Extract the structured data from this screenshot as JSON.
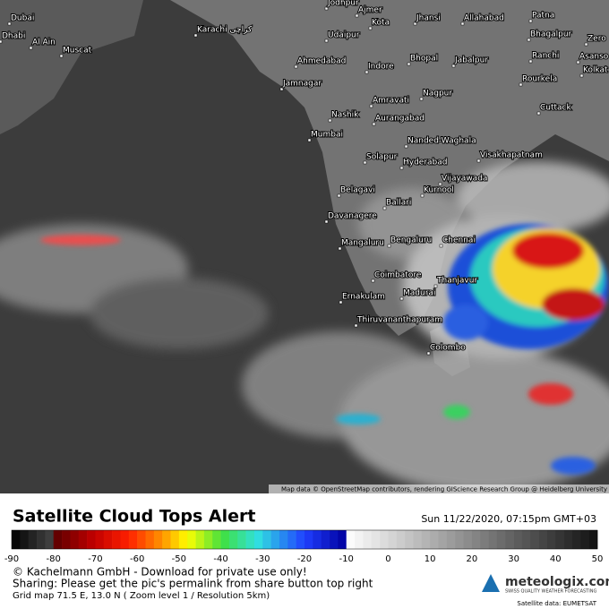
{
  "map": {
    "cities": [
      "Jodhpur",
      "Dubai",
      "Dhabi",
      "Al Ain",
      "Muscat",
      "Karachi كراچی",
      "Ajmer",
      "Kota",
      "Jhansi",
      "Allahabad",
      "Patna",
      "Udaipur",
      "Bhagalpur",
      "Zero",
      "Ahmedabad",
      "Indore",
      "Bhopal",
      "Jabalpur",
      "Ranchi",
      "Asanso",
      "Kolkat",
      "Jamnagar",
      "Rourkela",
      "Amravati",
      "Nagpur",
      "Cuttack",
      "Nashik",
      "Aurangabad",
      "Mumbai",
      "Nanded-Waghala",
      "Solapur",
      "Hyderabad",
      "Visakhapatnam",
      "Vijayawada",
      "Belagavi",
      "Kurnool",
      "Ballari",
      "Davanagere",
      "Chennai",
      "Mangaluru",
      "Bengaluru",
      "Coimbatore",
      "Thanjavur",
      "Madurai",
      "Ernakulam",
      "Thiruvananthapuram",
      "Colombo"
    ],
    "attribution": "Map data © OpenStreetMap contributors, rendering GIScience Research Group @ Heidelberg University"
  },
  "legend": {
    "title": "Satellite Cloud Tops Alert",
    "date": "Sun 11/22/2020, 07:15pm GMT+03",
    "ticks": [
      -90,
      -80,
      -70,
      -60,
      -50,
      -40,
      -30,
      -20,
      -10,
      0,
      10,
      20,
      30,
      40,
      50
    ]
  },
  "footer": {
    "copyright": "© Kachelmann GmbH - Download for private use only!",
    "sharing": "Sharing: Please get the pic's permalink from share button top right",
    "grid": "Grid map 71.5 E, 13.0 N ( Zoom level 1 / Resolution 5km)",
    "brand": "meteologix.com",
    "tagline": "SWISS QUALITY WEATHER FORECASTING",
    "source": "Satellite data: EUMETSAT"
  }
}
